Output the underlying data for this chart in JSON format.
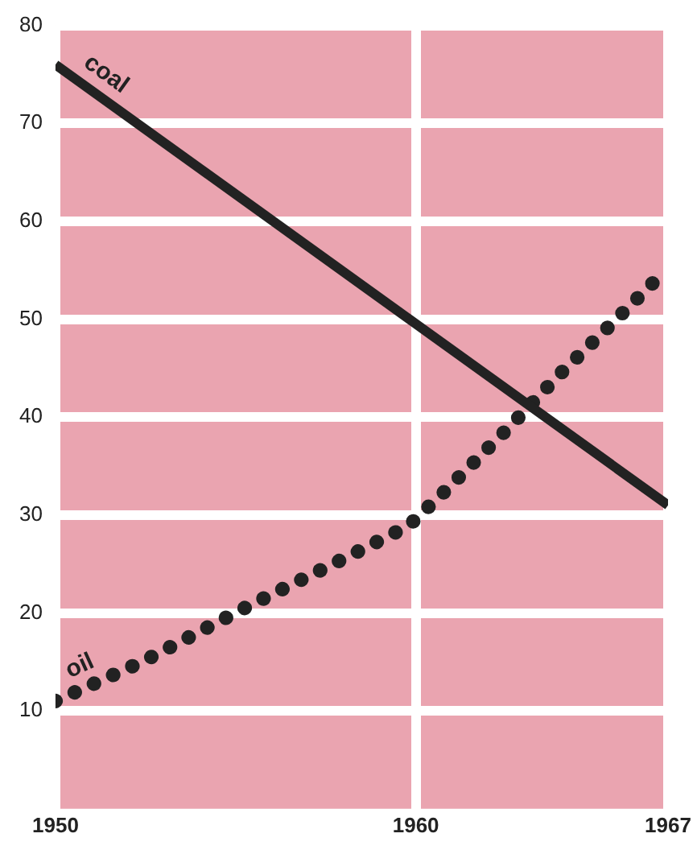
{
  "chart_data": {
    "type": "line",
    "x": [
      1950,
      1952.4,
      1955.3,
      1958.3,
      1959.8,
      1960.8,
      1962.6,
      1964,
      1965.4,
      1966.8,
      1967
    ],
    "series": [
      {
        "name": "coal",
        "color": "#222222",
        "x": [
          1950,
          1967
        ],
        "values": [
          76,
          31
        ],
        "line_style": "solid"
      },
      {
        "name": "oil",
        "color": "#222222",
        "values": [
          11,
          15,
          20.6,
          26.1,
          28.9,
          32.4,
          39,
          44.4,
          49.4,
          54.5,
          55
        ],
        "line_style": "dotted"
      }
    ],
    "xlim": [
      1950,
      1967
    ],
    "xticks": [
      1950,
      1960,
      1967
    ],
    "ylim": [
      0,
      80
    ],
    "yticks": [
      10,
      20,
      30,
      40,
      50,
      60,
      70,
      80
    ],
    "grid": true,
    "legend": false,
    "marker": "none"
  }
}
